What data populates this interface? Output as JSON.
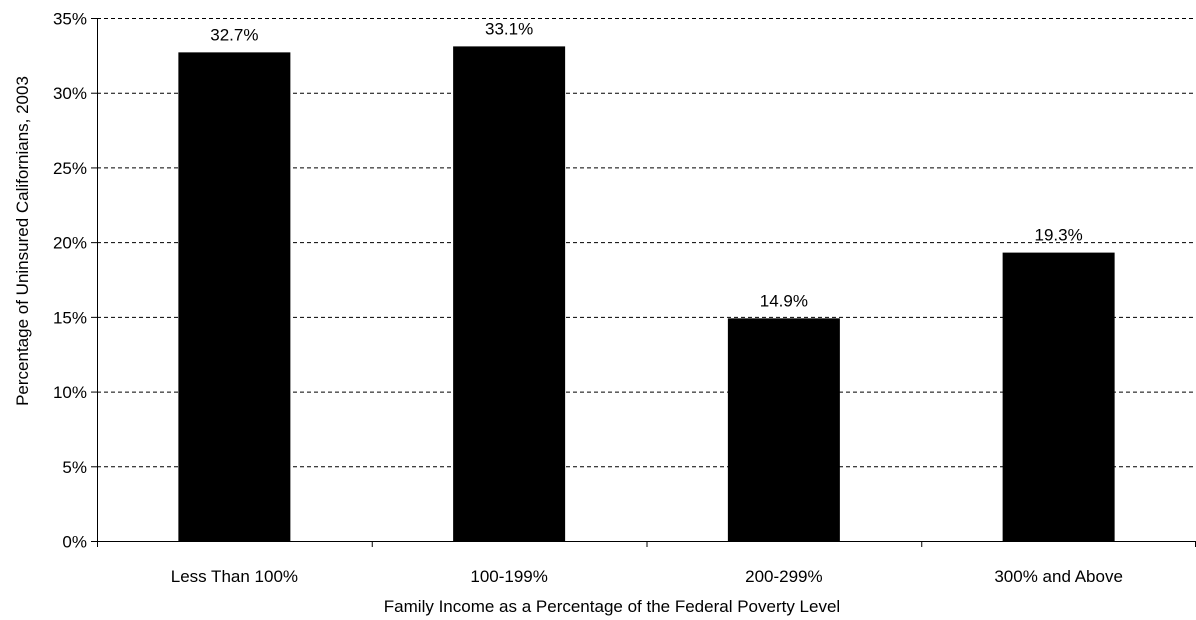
{
  "chart_data": {
    "type": "bar",
    "categories": [
      "Less Than 100%",
      "100-199%",
      "200-299%",
      "300% and Above"
    ],
    "values": [
      32.7,
      33.1,
      14.9,
      19.3
    ],
    "data_labels": [
      "32.7%",
      "33.1%",
      "14.9%",
      "19.3%"
    ],
    "xlabel": "Family Income as a Percentage of the Federal Poverty Level",
    "ylabel": "Percentage of Uninsured Californians, 2003",
    "ylim": [
      0,
      35
    ],
    "yticks": [
      0,
      5,
      10,
      15,
      20,
      25,
      30,
      35
    ],
    "ytick_labels": [
      "0%",
      "5%",
      "10%",
      "15%",
      "20%",
      "25%",
      "30%",
      "35%"
    ],
    "grid": "horizontal dashed",
    "bar_color": "#000000"
  }
}
